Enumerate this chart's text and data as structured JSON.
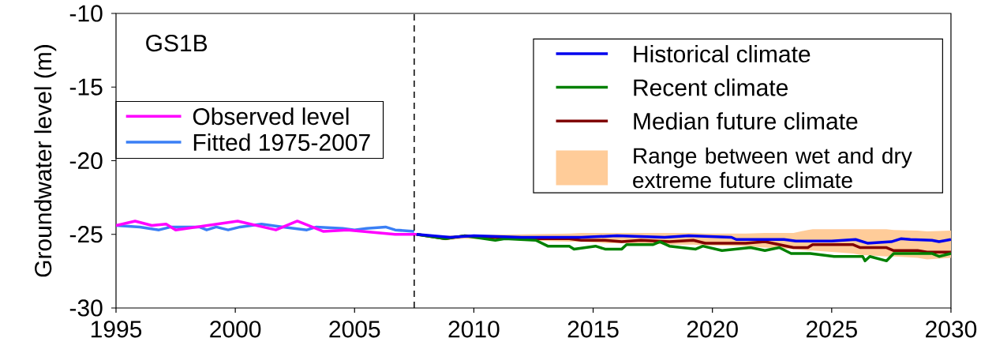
{
  "chart_data": {
    "type": "line",
    "ylabel": "Groundwater level (m)",
    "annotations": [
      "GS1B",
      "Range between wet and dry extreme future climate"
    ],
    "xlim": [
      1995,
      2030
    ],
    "xticks": [
      1995,
      2000,
      2005,
      2010,
      2015,
      2020,
      2025,
      2030
    ],
    "ylim": [
      -30,
      -10
    ],
    "yticks": [
      -30,
      -25,
      -20,
      -15,
      -10
    ],
    "grid": false,
    "legend": "top right",
    "line_style": "solid",
    "marker": "none",
    "ref_lines": [
      {
        "axis": "x",
        "value": 2007.5,
        "line_style": "dashed",
        "color": "#000000"
      }
    ],
    "series": [
      {
        "name": "Fitted 1975-2007",
        "color": "#3a7ff5",
        "x": [
          1995.0,
          1996.0,
          1996.8,
          1997.3,
          1998.5,
          1998.8,
          1999.2,
          1999.7,
          2000.2,
          2001.1,
          2002.0,
          2003.0,
          2003.4,
          2004.5,
          2005.0,
          2005.5,
          2006.3,
          2006.7,
          2007.5
        ],
        "values": [
          -24.4,
          -24.5,
          -24.7,
          -24.5,
          -24.5,
          -24.7,
          -24.5,
          -24.7,
          -24.5,
          -24.3,
          -24.5,
          -24.7,
          -24.5,
          -24.6,
          -24.7,
          -24.6,
          -24.5,
          -24.7,
          -24.8
        ]
      },
      {
        "name": "Observed level",
        "color": "#ff00ff",
        "x": [
          1995.0,
          1995.8,
          1996.5,
          1997.1,
          1997.5,
          2000.1,
          2001.7,
          2002.6,
          2003.7,
          2004.7,
          2006.7,
          2007.6
        ],
        "values": [
          -24.4,
          -24.1,
          -24.4,
          -24.3,
          -24.7,
          -24.1,
          -24.7,
          -24.1,
          -24.8,
          -24.7,
          -25.0,
          -25.0
        ]
      },
      {
        "name": "Median future climate",
        "color": "#800000",
        "x": [
          2007.6,
          2008.8,
          2009.6,
          2011.9,
          2014.0,
          2014.5,
          2015.5,
          2016.2,
          2017.0,
          2018.2,
          2019.2,
          2019.7,
          2021.4,
          2022.2,
          2023.4,
          2024.0,
          2024.2,
          2025.9,
          2026.2,
          2027.3,
          2027.6,
          2028.6,
          2029.0,
          2030.0
        ],
        "values": [
          -25.0,
          -25.3,
          -25.1,
          -25.3,
          -25.3,
          -25.4,
          -25.4,
          -25.5,
          -25.4,
          -25.5,
          -25.4,
          -25.6,
          -25.6,
          -25.5,
          -25.9,
          -25.9,
          -25.7,
          -25.7,
          -25.9,
          -25.9,
          -26.1,
          -26.1,
          -26.2,
          -26.2
        ],
        "lower": [
          -25.0,
          -25.4,
          -25.3,
          -25.4,
          -25.5,
          -25.5,
          -25.6,
          -25.6,
          -25.6,
          -25.7,
          -25.7,
          -25.75,
          -25.8,
          -25.9,
          -26.0,
          -26.1,
          -26.1,
          -26.3,
          -26.4,
          -26.5,
          -26.5,
          -26.6,
          -26.7,
          -26.6
        ],
        "upper": [
          -25.0,
          -25.1,
          -25.05,
          -25.0,
          -24.95,
          -24.9,
          -24.9,
          -24.9,
          -24.9,
          -24.9,
          -24.9,
          -24.95,
          -24.95,
          -24.9,
          -24.9,
          -24.7,
          -24.65,
          -24.65,
          -24.65,
          -24.65,
          -24.7,
          -24.75,
          -24.8,
          -24.75
        ]
      },
      {
        "name": "Recent climate",
        "color": "#008000",
        "x": [
          2007.6,
          2008.8,
          2009.6,
          2010.9,
          2011.3,
          2012.6,
          2013.1,
          2014.0,
          2014.2,
          2015.1,
          2015.5,
          2016.2,
          2016.4,
          2017.5,
          2017.8,
          2018.2,
          2019.3,
          2019.6,
          2020.4,
          2021.6,
          2022.2,
          2022.8,
          2023.3,
          2024.1,
          2025.1,
          2026.3,
          2026.4,
          2026.6,
          2027.3,
          2027.6,
          2029.2,
          2029.5,
          2030.0
        ],
        "values": [
          -25.0,
          -25.3,
          -25.1,
          -25.4,
          -25.3,
          -25.4,
          -25.8,
          -25.8,
          -26.0,
          -25.8,
          -26.0,
          -26.0,
          -25.7,
          -25.7,
          -25.5,
          -25.8,
          -26.0,
          -25.8,
          -26.1,
          -25.9,
          -26.1,
          -25.9,
          -26.3,
          -26.3,
          -26.5,
          -26.5,
          -26.8,
          -26.5,
          -26.8,
          -26.3,
          -26.3,
          -26.5,
          -26.3
        ]
      },
      {
        "name": "Historical climate",
        "color": "#0000ee",
        "x": [
          2007.6,
          2009.0,
          2010.0,
          2012.0,
          2013.0,
          2014.5,
          2016.0,
          2018.0,
          2019.0,
          2020.8,
          2021.0,
          2023.0,
          2023.5,
          2025.0,
          2026.0,
          2026.5,
          2027.5,
          2027.9,
          2028.3,
          2029.2,
          2029.5,
          2030.0
        ],
        "values": [
          -25.0,
          -25.2,
          -25.1,
          -25.2,
          -25.2,
          -25.2,
          -25.1,
          -25.2,
          -25.1,
          -25.2,
          -25.35,
          -25.35,
          -25.45,
          -25.45,
          -25.35,
          -25.6,
          -25.5,
          -25.3,
          -25.35,
          -25.4,
          -25.5,
          -25.35
        ]
      }
    ]
  }
}
